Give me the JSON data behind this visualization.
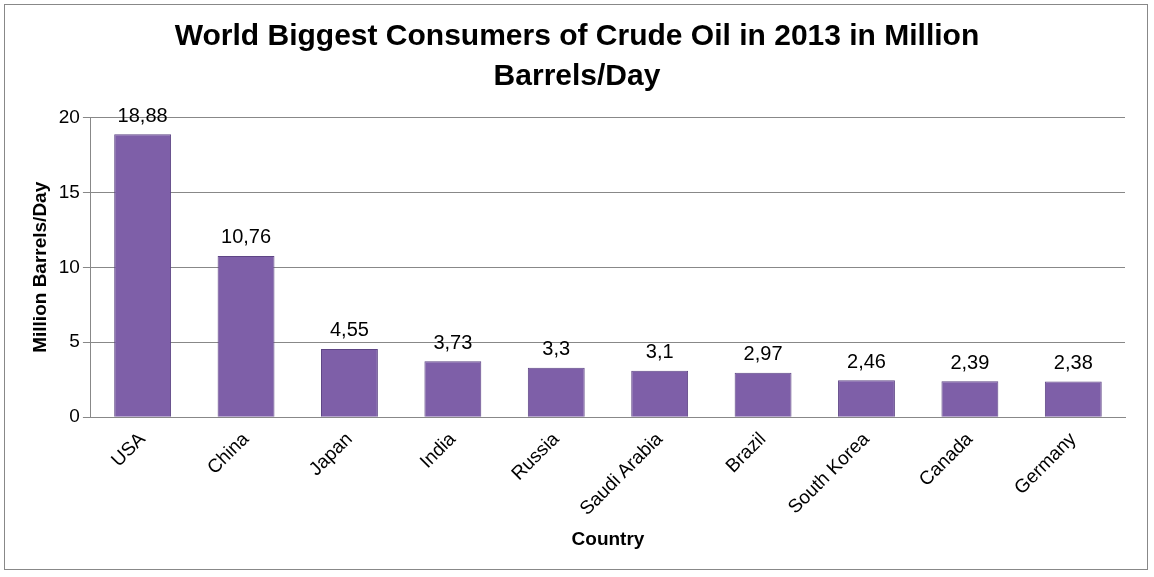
{
  "chart_data": {
    "type": "bar",
    "title": "World Biggest Consumers of Crude Oil in 2013 in Million Barrels/Day",
    "xlabel": "Country",
    "ylabel": "Million Barrels/Day",
    "categories": [
      "USA",
      "China",
      "Japan",
      "India",
      "Russia",
      "Saudi Arabia",
      "Brazil",
      "South Korea",
      "Canada",
      "Germany"
    ],
    "values": [
      18.88,
      10.76,
      4.55,
      3.73,
      3.3,
      3.1,
      2.97,
      2.46,
      2.39,
      2.38
    ],
    "value_labels": [
      "18,88",
      "10,76",
      "4,55",
      "3,73",
      "3,3",
      "3,1",
      "2,97",
      "2,46",
      "2,39",
      "2,38"
    ],
    "color": "#7e5fa8",
    "ylim": [
      0,
      20
    ],
    "yticks": [
      0,
      5,
      10,
      15,
      20
    ],
    "grid": "y",
    "legend": false
  }
}
